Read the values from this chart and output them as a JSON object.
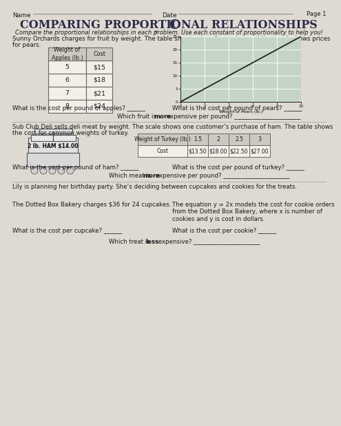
{
  "title": "Comparing Proportional Relationships",
  "page_label": "Page 1",
  "name_label": "Name",
  "date_label": "Date",
  "subtitle": "Compare the proportional relationships in each problem. Use each constant of proportionality to help you!",
  "section1_text": "Sunny Orchards charges for fruit by weight. The table shows prices for apples, and the graph shows prices",
  "section1_text2": "for pears.",
  "apples_header": [
    "Weight of\nApples (lb.)",
    "Cost"
  ],
  "apples_data": [
    [
      "5",
      "$15"
    ],
    [
      "6",
      "$18"
    ],
    [
      "7",
      "$21"
    ],
    [
      "8",
      "$24"
    ]
  ],
  "graph_xlabel": "Weight of Pears (lb.)",
  "graph_xticks": [
    0,
    2,
    4,
    6,
    8,
    10
  ],
  "graph_yticks": [
    0,
    5,
    10,
    15,
    20,
    25
  ],
  "q1a": "What is the cost per pound of apples? ______",
  "q1b": "What is the cost per pound of pears? ______",
  "q1c_pre": "Which fruit is ",
  "q1c_bold": "more",
  "q1c_post": " expensive per pound? ______________________",
  "section2_text": "Sub Club Deli sells deli meat by weight. The scale shows one customer’s purchase of ham. The table shows",
  "section2_text2": "the cost for common weights of turkey.",
  "ham_line1": "2 lb. HAM $14.00",
  "turkey_header": [
    "Weight of Turkey (lb.)",
    "1.5",
    "2",
    "2.5",
    "3"
  ],
  "turkey_data": [
    "Cost",
    "$13.50",
    "$18.00",
    "$22.50",
    "$27.00"
  ],
  "q2a": "What is the cost per pound of ham? ______",
  "q2b": "What is the cost per pound of turkey? ______",
  "q2c_pre": "Which meat is ",
  "q2c_bold": "more",
  "q2c_post": " expensive per pound? ______________________",
  "section3_text": "Lily is planning her birthday party. She’s deciding between cupcakes and cookies for the treats.",
  "cupcake_text": "The Dotted Box Bakery charges $36 for 24 cupcakes.",
  "cookie_text": "The equation y = 2x models the cost for cookie orders\nfrom the Dotted Box Bakery, where x is number of\ncookies and y is cost in dollars.",
  "q3a": "What is the cost per cupcake? ______",
  "q3b": "What is the cost per cookie? ______",
  "q3c_pre": "Which treat is ",
  "q3c_bold": "less",
  "q3c_post": " expensive? ______________________",
  "bg_color": "#dedad2",
  "table_bg": "#f2efe8",
  "header_bg": "#ccc9c0",
  "title_color": "#2a2a4a",
  "text_color": "#1a1a1a",
  "graph_grid_color": "#b8cbb8",
  "graph_line_color": "#222222"
}
